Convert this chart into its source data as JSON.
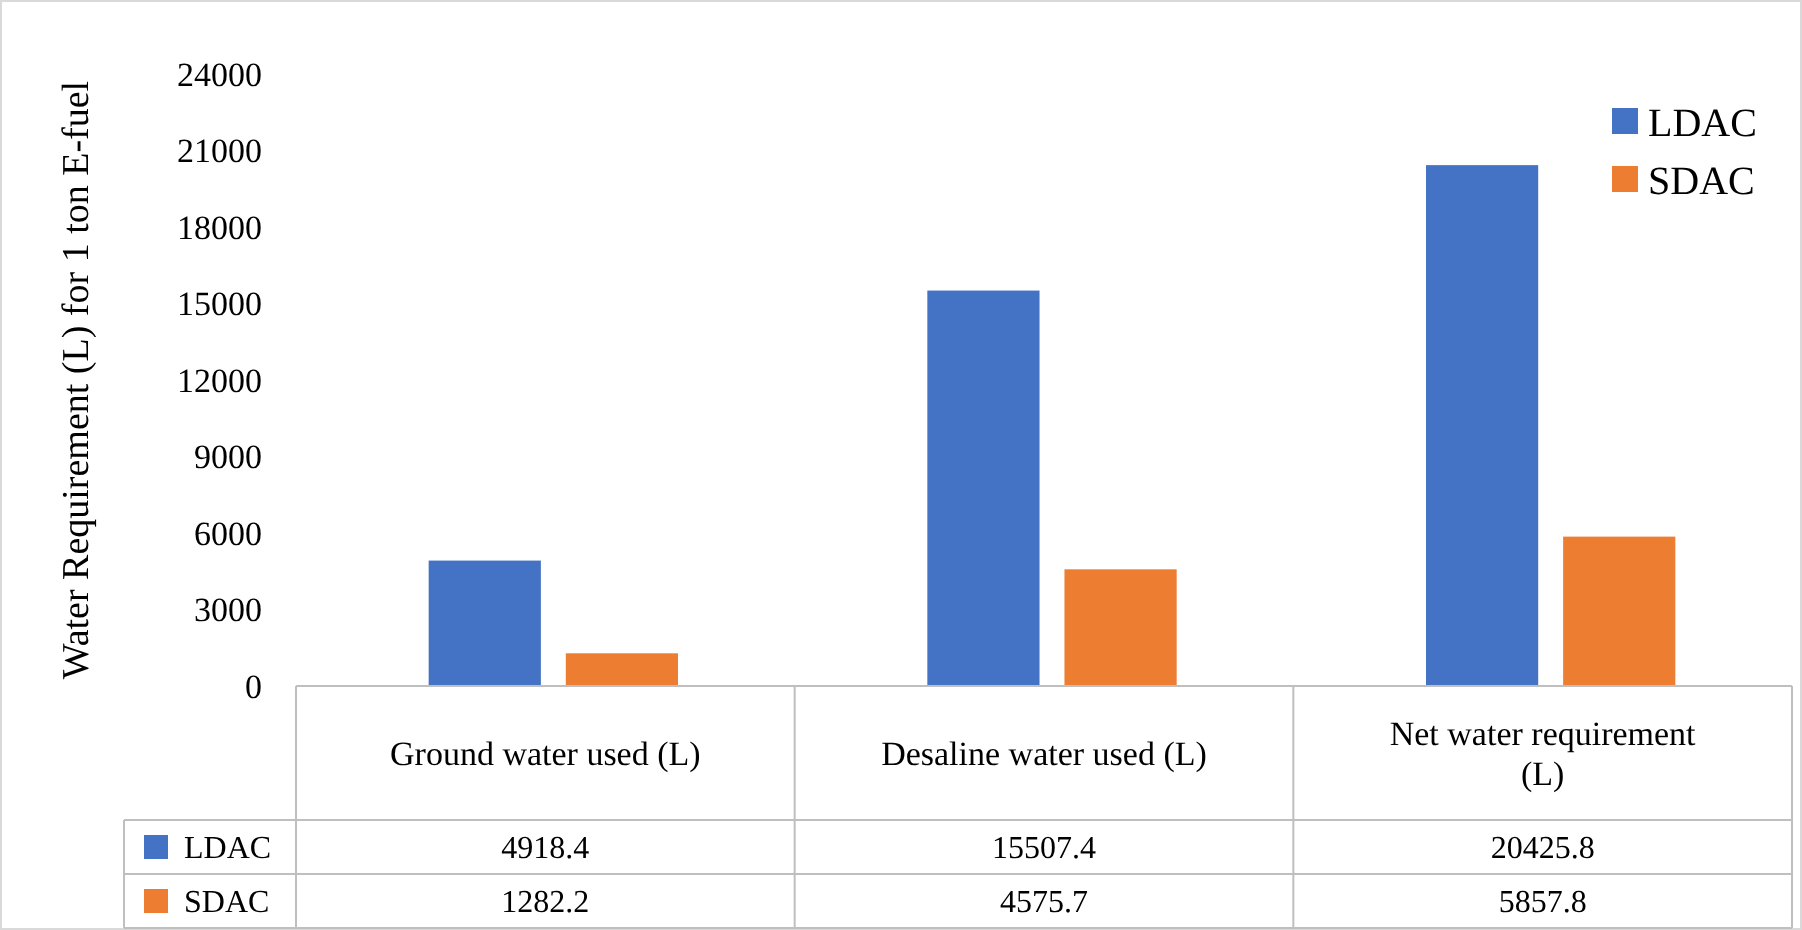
{
  "chart_data": {
    "type": "bar",
    "ylabel": "Water Requirement (L) for 1 ton E-fuel",
    "categories": [
      "Ground water used (L)",
      "Desaline water used (L)",
      "Net water requirement (L)"
    ],
    "series": [
      {
        "name": "LDAC",
        "color": "#4472c4",
        "values": [
          4918.4,
          15507.4,
          20425.8
        ]
      },
      {
        "name": "SDAC",
        "color": "#ed7d31",
        "values": [
          1282.2,
          4575.7,
          5857.8
        ]
      }
    ],
    "ylim": [
      0,
      24000
    ],
    "yticks": [
      0,
      3000,
      6000,
      9000,
      12000,
      15000,
      18000,
      21000,
      24000
    ],
    "grid": false,
    "legend": "top right",
    "data_labels": true
  }
}
